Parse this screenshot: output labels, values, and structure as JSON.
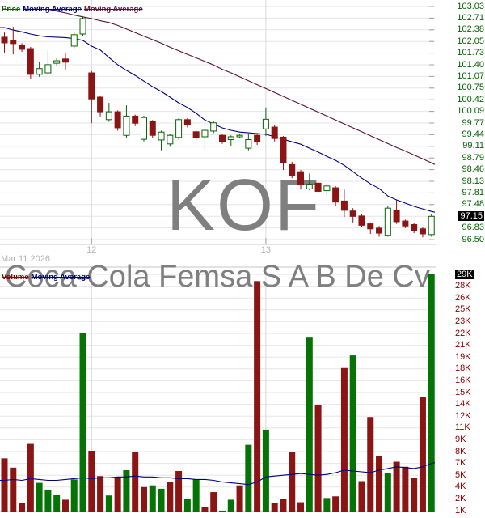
{
  "title_legend": {
    "price": "Price",
    "ma1": "Moving Average",
    "ma2": "Moving Average"
  },
  "volume_legend": {
    "volume": "Volume",
    "ma": "Moving Average"
  },
  "date_label": "Mar 11 2026",
  "watermark_symbol": "KOF",
  "watermark_name": "Coca-Cola Femsa S A B De Cv",
  "x_ticks": [
    {
      "label": "12",
      "index": 10
    },
    {
      "label": "13",
      "index": 30
    }
  ],
  "price_axis": {
    "labels": [
      "103.03",
      "102.71",
      "102.38",
      "102.05",
      "101.73",
      "101.40",
      "101.07",
      "100.75",
      "100.42",
      "100.09",
      "99.77",
      "99.44",
      "99.11",
      "98.79",
      "98.46",
      "98.13",
      "97.81",
      "97.48",
      "97.15",
      "96.83",
      "96.50"
    ],
    "highlight": "97.15",
    "top_value": 103.03,
    "bottom_value": 96.5
  },
  "volume_axis": {
    "labels": [
      "29K",
      "28K",
      "26K",
      "25K",
      "23K",
      "22K",
      "21K",
      "19K",
      "18K",
      "16K",
      "15K",
      "14K",
      "12K",
      "11K",
      "9K",
      "8K",
      "7K",
      "5K",
      "4K",
      "2K",
      "1K"
    ],
    "highlight": "29K",
    "top_value_k": 29,
    "bottom_value_k": 1
  },
  "colors": {
    "candle_up": "#056405",
    "candle_down": "#8b1414",
    "volume_up": "#067306",
    "volume_down": "#8b1414",
    "price_ma": "#000080",
    "long_ma": "#5a0f35",
    "volume_ma": "#000080",
    "legend_price": "#056405",
    "legend_volume": "#8b0000",
    "axis_price_text": "#006400",
    "axis_volume_text": "#8b0000",
    "muted_text": "#b4b4b4",
    "watermark": "#7f7f7f",
    "grid": "#e6e6e6",
    "grid_vertical": "#d8d8d8",
    "separator": "#c4c4c4",
    "tick": "#a0a0a0",
    "highlight_bg": "#000000",
    "highlight_text": "#ffffff"
  },
  "chart_data": [
    {
      "type": "candlestick",
      "title": "KOF price",
      "ylabel": "Price",
      "ylim": [
        96.5,
        103.03
      ],
      "last_price": 97.15,
      "x_tick_labels": [
        "12",
        "13"
      ],
      "ohlc": [
        [
          102.17,
          102.3,
          101.74,
          102.01
        ],
        [
          102.08,
          102.46,
          101.69,
          101.99
        ],
        [
          101.94,
          102.0,
          101.76,
          101.83
        ],
        [
          101.85,
          101.9,
          101.01,
          101.13
        ],
        [
          101.13,
          101.47,
          101.06,
          101.29
        ],
        [
          101.17,
          101.81,
          101.1,
          101.4
        ],
        [
          101.44,
          101.58,
          101.38,
          101.51
        ],
        [
          101.56,
          101.74,
          101.24,
          101.47
        ],
        [
          101.92,
          102.3,
          101.86,
          102.24
        ],
        [
          102.26,
          102.76,
          102.2,
          102.69
        ],
        [
          101.17,
          101.22,
          99.76,
          100.44
        ],
        [
          100.49,
          100.53,
          99.95,
          100.08
        ],
        [
          99.86,
          100.33,
          99.8,
          100.08
        ],
        [
          100.08,
          100.12,
          99.55,
          99.63
        ],
        [
          99.42,
          100.26,
          99.35,
          99.96
        ],
        [
          99.96,
          100.0,
          99.68,
          99.76
        ],
        [
          99.31,
          99.97,
          99.25,
          99.92
        ],
        [
          99.81,
          99.85,
          99.35,
          99.42
        ],
        [
          99.29,
          99.55,
          99.0,
          99.51
        ],
        [
          99.18,
          99.46,
          99.1,
          99.42
        ],
        [
          99.36,
          99.9,
          99.3,
          99.86
        ],
        [
          99.86,
          99.9,
          99.64,
          99.72
        ],
        [
          99.52,
          99.56,
          99.28,
          99.36
        ],
        [
          99.38,
          99.6,
          99.02,
          99.56
        ],
        [
          99.54,
          99.82,
          99.48,
          99.77
        ],
        [
          99.42,
          99.46,
          99.18,
          99.24
        ],
        [
          99.3,
          99.42,
          99.12,
          99.38
        ],
        [
          99.38,
          99.46,
          99.34,
          99.42
        ],
        [
          99.06,
          99.45,
          99.0,
          99.3
        ],
        [
          99.42,
          99.47,
          99.15,
          99.24
        ],
        [
          99.6,
          100.2,
          99.4,
          99.87
        ],
        [
          99.65,
          99.7,
          99.25,
          99.33
        ],
        [
          99.37,
          99.4,
          98.45,
          98.66
        ],
        [
          98.6,
          98.68,
          98.22,
          98.3
        ],
        [
          98.4,
          98.45,
          97.9,
          98.05
        ],
        [
          97.92,
          98.35,
          97.88,
          98.05
        ],
        [
          98.08,
          98.12,
          97.78,
          97.85
        ],
        [
          97.87,
          98.05,
          97.75,
          98.0
        ],
        [
          97.95,
          98.0,
          97.45,
          97.55
        ],
        [
          97.58,
          97.9,
          97.13,
          97.32
        ],
        [
          97.3,
          97.38,
          96.98,
          97.15
        ],
        [
          97.16,
          97.2,
          96.84,
          96.9
        ],
        [
          96.94,
          96.98,
          96.66,
          96.8
        ],
        [
          96.82,
          96.88,
          96.58,
          96.68
        ],
        [
          96.62,
          97.44,
          96.58,
          97.38
        ],
        [
          97.32,
          97.6,
          96.94,
          97.0
        ],
        [
          97.02,
          97.06,
          96.82,
          96.88
        ],
        [
          96.92,
          96.96,
          96.68,
          96.74
        ],
        [
          96.8,
          96.86,
          96.56,
          96.66
        ],
        [
          96.64,
          97.21,
          96.58,
          97.15
        ]
      ],
      "ma_blue": [
        102.44,
        102.37,
        102.32,
        102.26,
        102.21,
        102.18,
        102.17,
        102.16,
        102.13,
        102.08,
        101.92,
        101.81,
        101.6,
        101.4,
        101.24,
        101.1,
        100.94,
        100.78,
        100.65,
        100.49,
        100.33,
        100.2,
        100.04,
        99.85,
        99.74,
        99.63,
        99.56,
        99.51,
        99.49,
        99.47,
        99.45,
        99.38,
        99.31,
        99.24,
        99.17,
        99.06,
        98.95,
        98.83,
        98.72,
        98.58,
        98.4,
        98.22,
        98.06,
        97.93,
        97.72,
        97.61,
        97.52,
        97.43,
        97.36,
        97.29
      ],
      "ma_maroon": [
        null,
        null,
        null,
        null,
        null,
        102.95,
        102.9,
        102.85,
        102.79,
        102.74,
        102.69,
        102.63,
        102.58,
        102.5,
        102.4,
        102.3,
        102.2,
        102.1,
        102.0,
        101.89,
        101.79,
        101.69,
        101.59,
        101.49,
        101.39,
        101.27,
        101.17,
        101.06,
        100.95,
        100.84,
        100.73,
        100.62,
        100.51,
        100.4,
        100.29,
        100.18,
        100.07,
        99.96,
        99.85,
        99.74,
        99.63,
        99.52,
        99.41,
        99.3,
        99.19,
        99.08,
        98.98,
        98.87,
        98.76,
        98.65
      ]
    },
    {
      "type": "bar",
      "title": "Volume",
      "ylabel": "Volume (K)",
      "ylim": [
        0,
        29
      ],
      "last_volume_k": 29.0,
      "values_k": [
        7.2,
        6.1,
        1.9,
        9.0,
        4.3,
        3.5,
        2.9,
        2.3,
        4.7,
        22.0,
        8.1,
        5.1,
        2.8,
        5.0,
        5.8,
        8.0,
        3.8,
        4.0,
        3.6,
        4.4,
        5.7,
        2.4,
        4.7,
        1.4,
        3.2,
        1.0,
        2.3,
        4.0,
        8.8,
        28.2,
        10.6,
        1.9,
        2.4,
        8.0,
        2.0,
        21.6,
        13.5,
        2.5,
        2.7,
        17.9,
        19.4,
        4.5,
        12.1,
        7.5,
        5.5,
        6.8,
        6.2,
        4.9,
        14.5,
        29.0
      ],
      "direction": [
        "down",
        "down",
        "down",
        "down",
        "up",
        "up",
        "up",
        "down",
        "up",
        "up",
        "down",
        "down",
        "up",
        "down",
        "up",
        "down",
        "down",
        "up",
        "up",
        "down",
        "down",
        "up",
        "up",
        "down",
        "down",
        "up",
        "up",
        "down",
        "up",
        "down",
        "up",
        "down",
        "down",
        "down",
        "down",
        "up",
        "down",
        "up",
        "down",
        "down",
        "up",
        "down",
        "down",
        "down",
        "up",
        "down",
        "down",
        "down",
        "down",
        "up"
      ],
      "ma_k": [
        4.6,
        4.7,
        4.6,
        4.8,
        4.7,
        4.6,
        4.6,
        4.7,
        4.8,
        4.9,
        4.8,
        4.9,
        4.9,
        5.0,
        5.0,
        5.1,
        5.0,
        5.0,
        4.9,
        4.9,
        4.8,
        4.8,
        4.7,
        4.7,
        4.6,
        4.4,
        4.3,
        4.2,
        4.1,
        4.4,
        5.0,
        5.1,
        5.2,
        5.3,
        5.4,
        5.3,
        5.2,
        5.3,
        5.5,
        5.8,
        5.7,
        5.6,
        5.5,
        5.8,
        6.0,
        6.2,
        6.1,
        6.0,
        6.2,
        6.6
      ]
    }
  ]
}
